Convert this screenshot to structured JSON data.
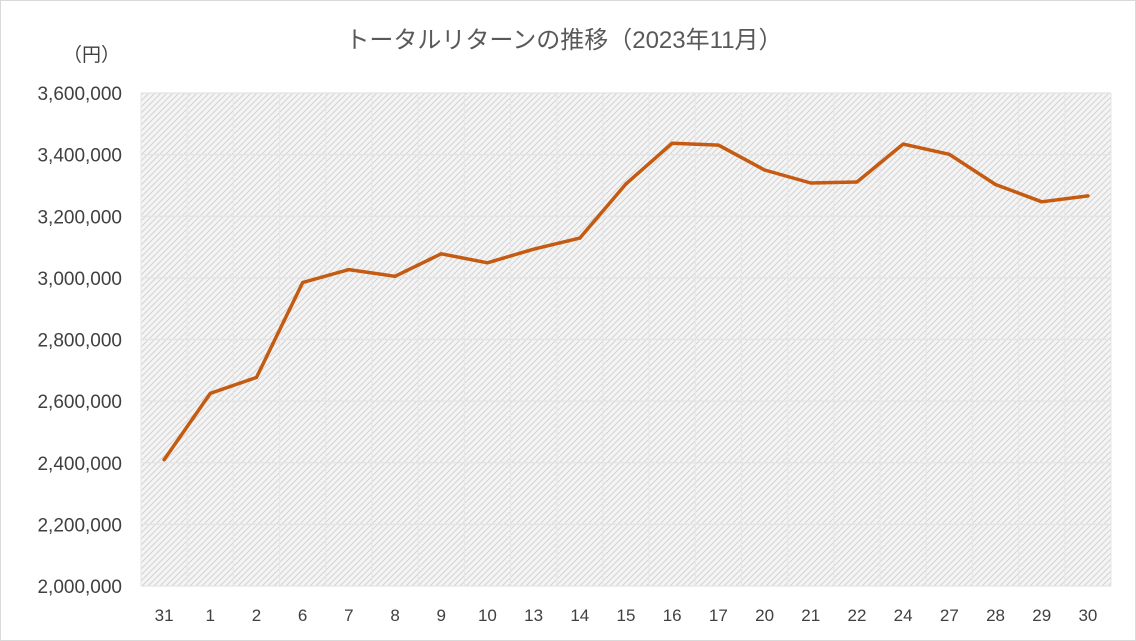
{
  "chart_data": {
    "type": "line",
    "title": "トータルリターンの推移（2023年11月）",
    "ylabel": "（円）",
    "xlabel": "",
    "categories": [
      "31",
      "1",
      "2",
      "6",
      "7",
      "8",
      "9",
      "10",
      "13",
      "14",
      "15",
      "16",
      "17",
      "20",
      "21",
      "22",
      "24",
      "27",
      "28",
      "29",
      "30"
    ],
    "series": [
      {
        "values": [
          2410000,
          2625000,
          2677000,
          2985000,
          3027000,
          3005000,
          3078000,
          3049000,
          3093000,
          3129000,
          3305000,
          3437000,
          3431000,
          3350000,
          3308000,
          3311000,
          3434000,
          3401000,
          3303000,
          3247000,
          3266000
        ],
        "color": "#c55a11"
      }
    ],
    "ylim": [
      2000000,
      3600000
    ],
    "yticks": [
      "2,000,000",
      "2,200,000",
      "2,400,000",
      "2,600,000",
      "2,800,000",
      "3,000,000",
      "3,200,000",
      "3,400,000",
      "3,600,000"
    ],
    "grid": true,
    "legend": "none"
  }
}
